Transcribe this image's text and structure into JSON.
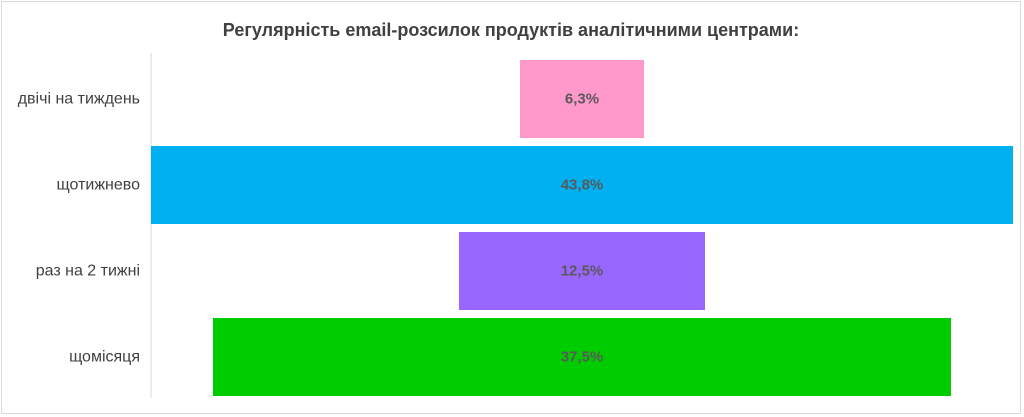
{
  "chart_data": {
    "type": "bar",
    "subtype": "funnel",
    "title": "Регулярність email-розсилок продуктів аналітичними центрами:",
    "categories": [
      "двічі на тиждень",
      "щотижнево",
      "раз на 2 тижні",
      "щомісяця"
    ],
    "values": [
      6.3,
      43.8,
      12.5,
      37.5
    ],
    "value_labels": [
      "6,3%",
      "43,8%",
      "12,5%",
      "37,5%"
    ],
    "unit": "%",
    "colors": [
      "#ff99cc",
      "#00b0f0",
      "#9966ff",
      "#00cc00"
    ],
    "xlabel": "",
    "ylabel": "",
    "xlim": [
      0,
      43.8
    ],
    "grid": false,
    "legend": "none"
  }
}
